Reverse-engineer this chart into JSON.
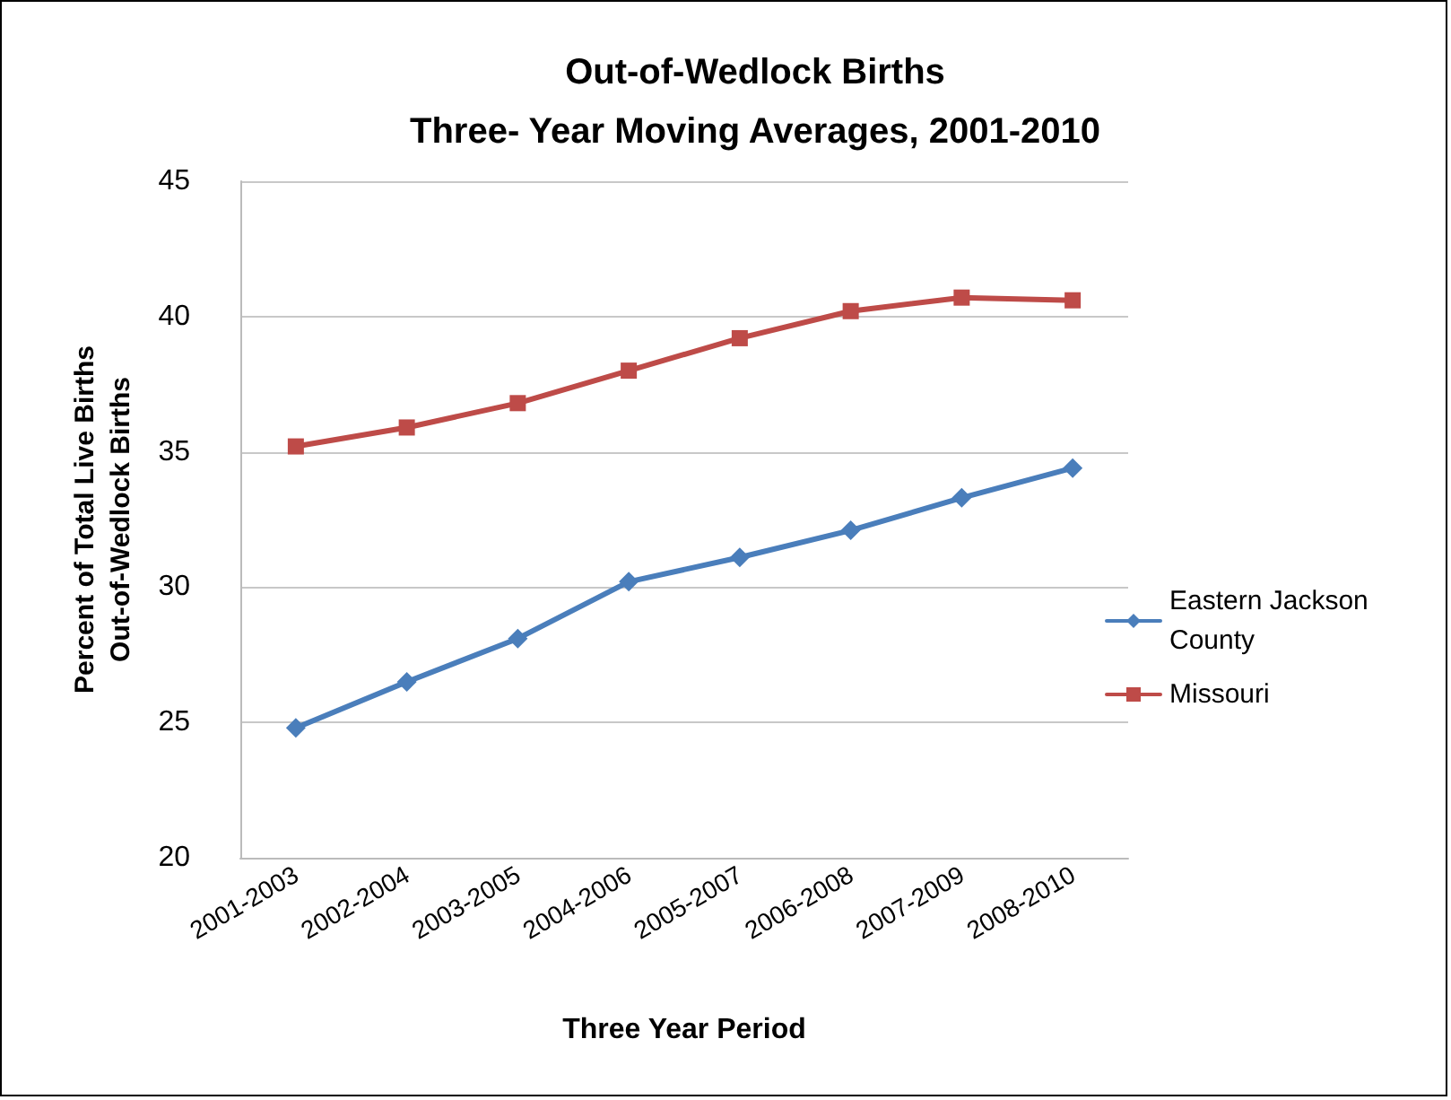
{
  "chart_data": {
    "type": "line",
    "title": "Out-of-Wedlock Births\nThree- Year Moving Averages, 2001-2010",
    "xlabel": "Three Year Period",
    "ylabel": "Percent of Total Live Births\nOut-of-Wedlock Births",
    "categories": [
      "2001-2003",
      "2002-2004",
      "2003-2005",
      "2004-2006",
      "2005-2007",
      "2006-2008",
      "2007-2009",
      "2008-2010"
    ],
    "series": [
      {
        "name": "Eastern Jackson County",
        "color": "#4a7ebb",
        "marker": "diamond",
        "values": [
          24.8,
          26.5,
          28.1,
          30.2,
          31.1,
          32.1,
          33.3,
          34.4
        ]
      },
      {
        "name": "Missouri",
        "color": "#be4b48",
        "marker": "square",
        "values": [
          35.2,
          35.9,
          36.8,
          38.0,
          39.2,
          40.2,
          40.7,
          40.6
        ]
      }
    ],
    "ylim": [
      20,
      45
    ],
    "yticks": [
      20,
      25,
      30,
      35,
      40,
      45
    ],
    "grid": "y",
    "legend": "right",
    "line_style": "solid"
  }
}
